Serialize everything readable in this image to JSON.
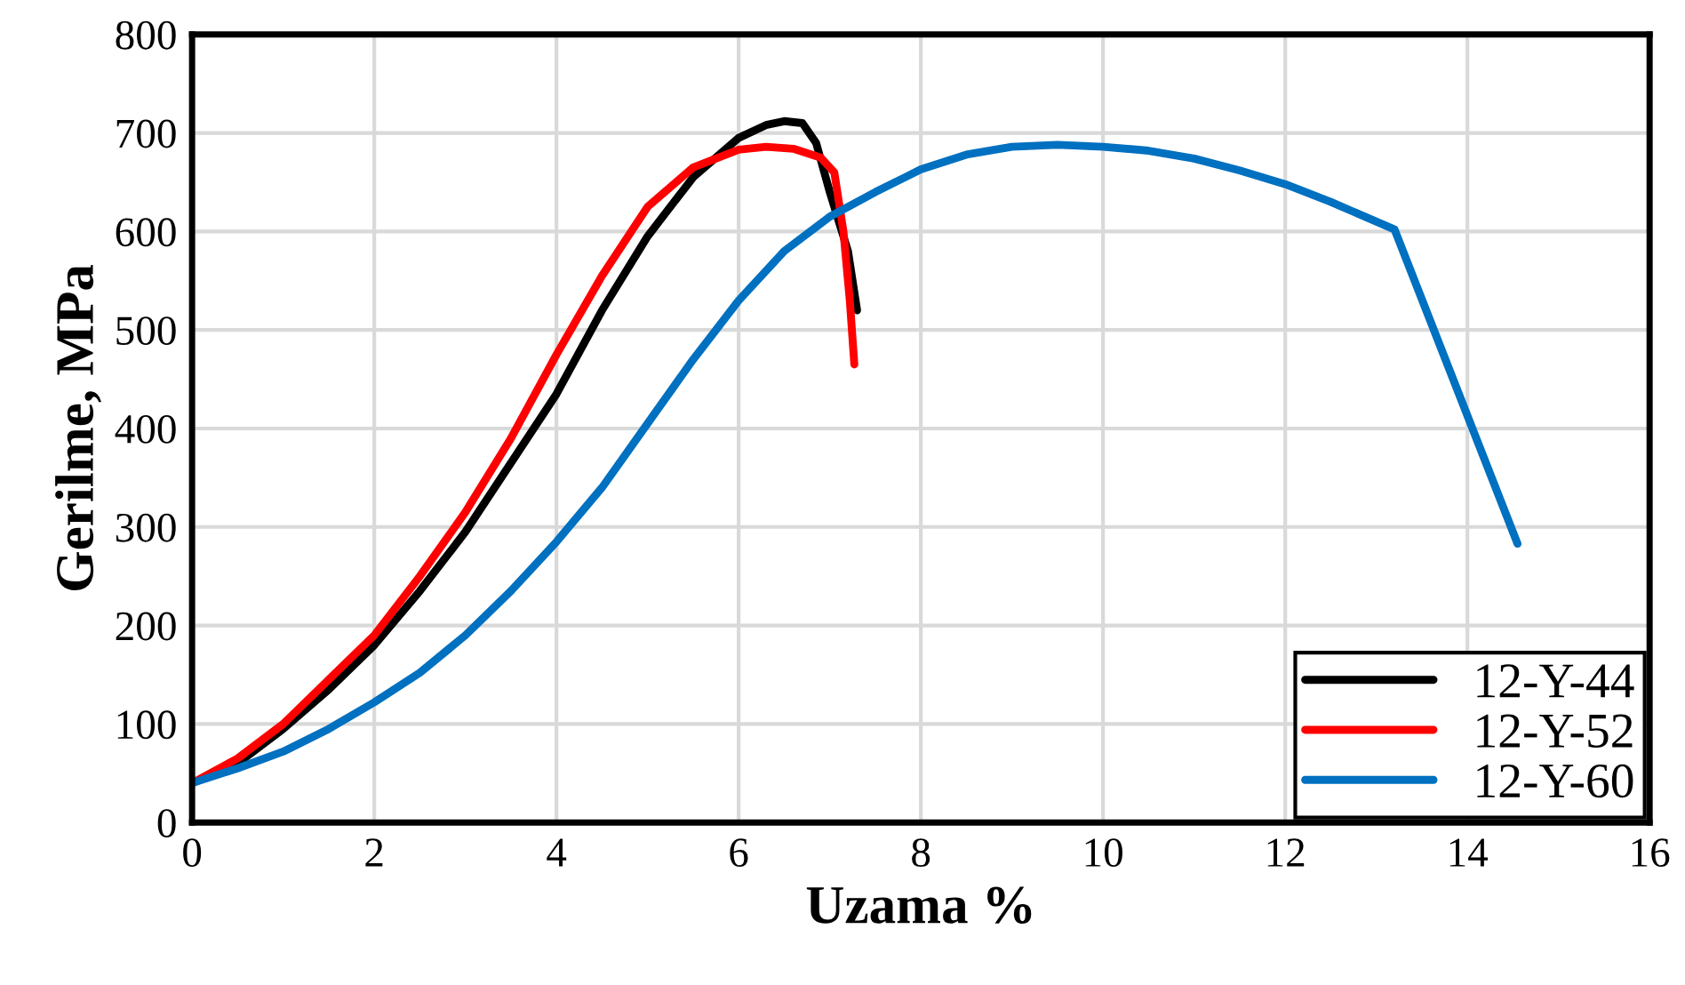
{
  "chart_data": {
    "type": "line",
    "xlabel": "Uzama %",
    "ylabel": "Gerilme, MPa",
    "xlim": [
      0,
      16
    ],
    "xticks": [
      0,
      2,
      4,
      6,
      8,
      10,
      12,
      14,
      16
    ],
    "ylim": [
      0,
      800
    ],
    "yticks": [
      0,
      100,
      200,
      300,
      400,
      500,
      600,
      700,
      800
    ],
    "grid": true,
    "legend": "bottom right",
    "marker": "none",
    "line_style": "solid",
    "series": [
      {
        "name": "12-Y-44",
        "color": "#000000",
        "x": [
          0,
          0.5,
          1,
          1.5,
          2,
          2.5,
          3,
          3.5,
          4,
          4.5,
          5,
          5.5,
          6,
          6.3,
          6.5,
          6.7,
          6.85,
          7.0,
          7.2,
          7.3
        ],
        "values": [
          40,
          60,
          95,
          135,
          180,
          235,
          295,
          365,
          435,
          520,
          595,
          655,
          695,
          708,
          712,
          710,
          690,
          640,
          580,
          520
        ]
      },
      {
        "name": "12-Y-52",
        "color": "#ff0000",
        "x": [
          0,
          0.5,
          1,
          1.5,
          2,
          2.5,
          3,
          3.5,
          4,
          4.5,
          5,
          5.5,
          6,
          6.3,
          6.6,
          6.9,
          7.05,
          7.15,
          7.22,
          7.27
        ],
        "values": [
          40,
          65,
          100,
          145,
          190,
          250,
          315,
          390,
          475,
          555,
          625,
          665,
          683,
          686,
          684,
          675,
          660,
          600,
          530,
          465
        ]
      },
      {
        "name": "12-Y-60",
        "color": "#0070c0",
        "x": [
          0,
          0.5,
          1,
          1.5,
          2,
          2.5,
          3,
          3.5,
          4,
          4.5,
          5,
          5.5,
          6,
          6.5,
          7,
          7.5,
          8,
          8.5,
          9,
          9.5,
          10,
          10.5,
          11,
          11.5,
          12,
          12.5,
          13.2,
          14.55
        ],
        "values": [
          40,
          55,
          72,
          95,
          122,
          152,
          190,
          235,
          285,
          340,
          405,
          470,
          530,
          580,
          615,
          640,
          663,
          678,
          686,
          688,
          686,
          682,
          674,
          662,
          648,
          630,
          602,
          283
        ]
      }
    ]
  }
}
